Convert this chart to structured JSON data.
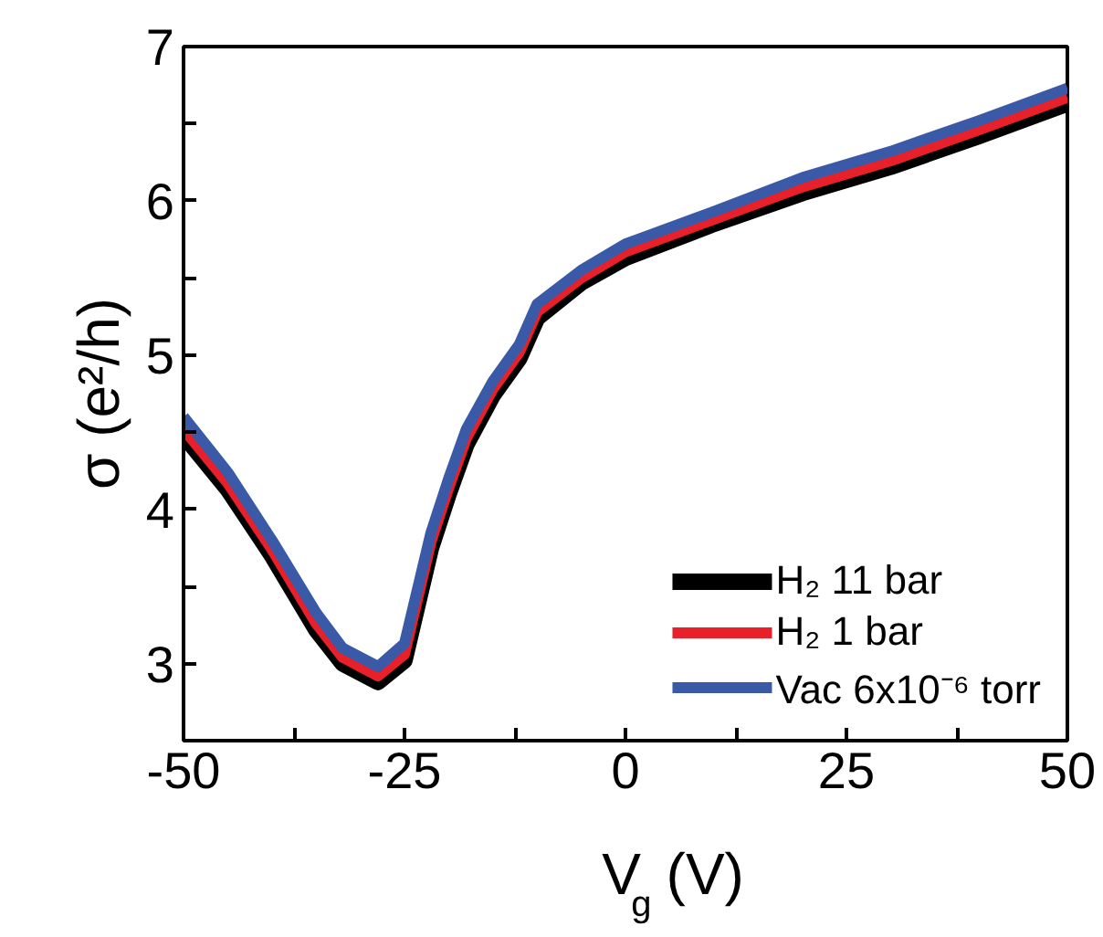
{
  "chart_data": {
    "type": "line",
    "xlabel": "V$_{g}$ (V)",
    "ylabel": "σ (e²/h)",
    "xlim": [
      -50,
      50
    ],
    "ylim": [
      2.5,
      7
    ],
    "xticks": [
      -50,
      {
        "value": -37.5,
        "label": null
      },
      -25,
      {
        "value": -12.5,
        "label": null
      },
      0,
      {
        "value": 12.5,
        "label": null
      },
      25,
      {
        "value": 37.5,
        "label": null
      },
      50
    ],
    "yticks": [
      3,
      {
        "value": 3.5,
        "label": null
      },
      4,
      {
        "value": 4.5,
        "label": null
      },
      5,
      {
        "value": 5.5,
        "label": null
      },
      6,
      {
        "value": 6.5,
        "label": null
      },
      7
    ],
    "x": [
      -50,
      -45,
      -40,
      -35,
      -32,
      -28,
      -25,
      -22,
      -20,
      -18,
      -15,
      -12,
      -10,
      -5,
      0,
      10,
      20,
      30,
      40,
      50
    ],
    "series": [
      {
        "name": "H₂ 11 bar",
        "color": "#000000",
        "values": [
          4.48,
          4.13,
          3.7,
          3.22,
          3.0,
          2.88,
          3.02,
          3.75,
          4.1,
          4.42,
          4.74,
          4.98,
          5.24,
          5.47,
          5.63,
          5.85,
          6.05,
          6.22,
          6.42,
          6.63
        ]
      },
      {
        "name": "H₂ 1 bar",
        "color": "#e8202a",
        "values": [
          4.52,
          4.17,
          3.74,
          3.26,
          3.04,
          2.92,
          3.06,
          3.79,
          4.14,
          4.46,
          4.78,
          5.02,
          5.28,
          5.5,
          5.67,
          5.88,
          6.09,
          6.26,
          6.46,
          6.67
        ]
      },
      {
        "name": "Vac 6x10⁻⁶ torr",
        "color": "#3a5aa8",
        "values": [
          4.6,
          4.24,
          3.8,
          3.33,
          3.1,
          2.98,
          3.13,
          3.85,
          4.2,
          4.52,
          4.83,
          5.07,
          5.33,
          5.55,
          5.72,
          5.93,
          6.15,
          6.32,
          6.52,
          6.73
        ]
      }
    ],
    "legend": "bottom right",
    "grid": false,
    "line_style": "solid"
  }
}
